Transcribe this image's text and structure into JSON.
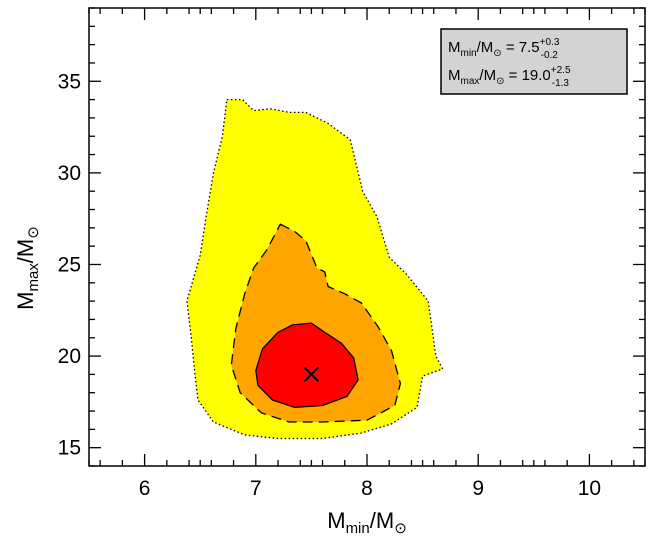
{
  "chart_data": {
    "type": "contour",
    "xlabel": {
      "main": "M",
      "sub": "min",
      "sep": "/M",
      "sun": "⊙"
    },
    "ylabel": {
      "main": "M",
      "sub": "max",
      "sep": "/M",
      "sun": "⊙"
    },
    "xlim": [
      5.5,
      10.5
    ],
    "ylim": [
      14,
      39
    ],
    "xticks": [
      6,
      7,
      8,
      9,
      10
    ],
    "yticks": [
      15,
      20,
      25,
      30,
      35
    ],
    "xtick_labels": [
      "6",
      "7",
      "8",
      "9",
      "10"
    ],
    "ytick_labels": [
      "15",
      "20",
      "25",
      "30",
      "35"
    ],
    "grid": false,
    "legend_position": "top-right",
    "best_fit": {
      "x": 7.5,
      "y": 19.0,
      "marker": "x"
    },
    "annotation": [
      {
        "name": "M",
        "sub": "min",
        "sep": "/M",
        "sun": "⊙",
        "eq": " = 7.5",
        "sup": "+0.3",
        "low": "-0.2"
      },
      {
        "name": "M",
        "sub": "max",
        "sep": "/M",
        "sun": "⊙",
        "eq": " = 19.0",
        "sup": "+2.5",
        "low": "-1.3"
      }
    ],
    "regions": [
      {
        "name": "outer",
        "fill": "#ffff00",
        "line_style": "dotted",
        "boundary": [
          [
            6.74,
            34.0
          ],
          [
            6.88,
            34.0
          ],
          [
            6.98,
            33.4
          ],
          [
            7.13,
            33.5
          ],
          [
            7.3,
            33.3
          ],
          [
            7.45,
            33.3
          ],
          [
            7.65,
            32.7
          ],
          [
            7.85,
            31.8
          ],
          [
            7.96,
            29.0
          ],
          [
            8.09,
            27.6
          ],
          [
            8.2,
            25.4
          ],
          [
            8.35,
            24.5
          ],
          [
            8.55,
            23.0
          ],
          [
            8.62,
            20.0
          ],
          [
            8.68,
            19.3
          ],
          [
            8.5,
            18.9
          ],
          [
            8.45,
            17.2
          ],
          [
            8.22,
            16.3
          ],
          [
            7.95,
            15.8
          ],
          [
            7.6,
            15.5
          ],
          [
            7.2,
            15.5
          ],
          [
            6.9,
            15.7
          ],
          [
            6.62,
            16.4
          ],
          [
            6.48,
            17.6
          ],
          [
            6.45,
            19.2
          ],
          [
            6.42,
            21.0
          ],
          [
            6.38,
            23.0
          ],
          [
            6.5,
            25.5
          ],
          [
            6.55,
            27.5
          ],
          [
            6.62,
            30.0
          ],
          [
            6.7,
            32.0
          ]
        ]
      },
      {
        "name": "middle",
        "fill": "#ffa500",
        "line_style": "dashed",
        "boundary": [
          [
            7.22,
            27.2
          ],
          [
            7.35,
            26.8
          ],
          [
            7.45,
            26.3
          ],
          [
            7.55,
            24.8
          ],
          [
            7.62,
            24.6
          ],
          [
            7.65,
            23.8
          ],
          [
            7.8,
            23.4
          ],
          [
            7.95,
            22.9
          ],
          [
            8.1,
            21.6
          ],
          [
            8.22,
            20.3
          ],
          [
            8.3,
            18.5
          ],
          [
            8.25,
            17.3
          ],
          [
            8.0,
            16.5
          ],
          [
            7.6,
            16.4
          ],
          [
            7.3,
            16.4
          ],
          [
            7.05,
            16.9
          ],
          [
            6.86,
            18.0
          ],
          [
            6.78,
            19.5
          ],
          [
            6.82,
            21.5
          ],
          [
            6.9,
            23.4
          ],
          [
            6.98,
            24.8
          ],
          [
            7.1,
            25.8
          ]
        ]
      },
      {
        "name": "inner",
        "fill": "#ff0000",
        "line_style": "solid",
        "boundary": [
          [
            7.0,
            19.2
          ],
          [
            7.06,
            20.4
          ],
          [
            7.2,
            21.3
          ],
          [
            7.33,
            21.7
          ],
          [
            7.5,
            21.8
          ],
          [
            7.62,
            21.3
          ],
          [
            7.77,
            20.7
          ],
          [
            7.88,
            19.9
          ],
          [
            7.92,
            18.7
          ],
          [
            7.82,
            17.8
          ],
          [
            7.6,
            17.3
          ],
          [
            7.35,
            17.2
          ],
          [
            7.15,
            17.6
          ],
          [
            7.02,
            18.4
          ]
        ]
      }
    ]
  }
}
